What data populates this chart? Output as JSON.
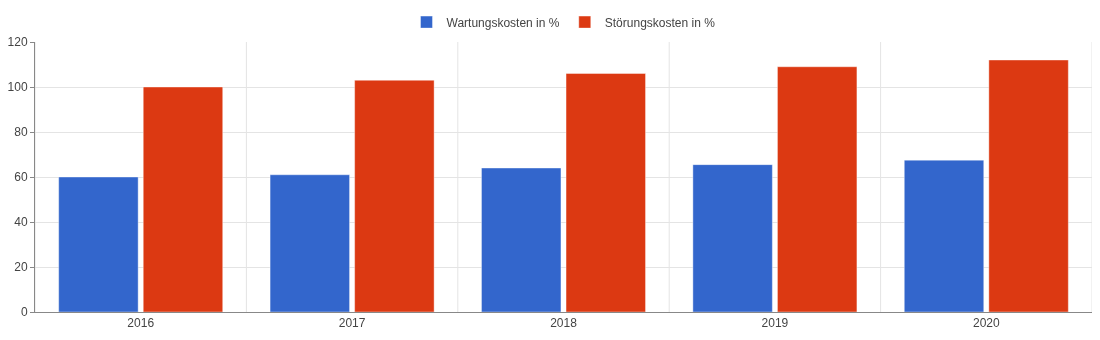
{
  "chart_data": {
    "type": "bar",
    "categories": [
      "2016",
      "2017",
      "2018",
      "2019",
      "2020"
    ],
    "series": [
      {
        "name": "Wartungskosten in %",
        "color": "#3366cc",
        "values": [
          60,
          61,
          64,
          65.5,
          67.5
        ]
      },
      {
        "name": "Störungskosten in %",
        "color": "#dc3912",
        "values": [
          100,
          103,
          106,
          109,
          112
        ]
      }
    ],
    "ylim": [
      0,
      120
    ],
    "yticks": [
      0,
      20,
      40,
      60,
      80,
      100,
      120
    ],
    "grid": true,
    "legend": "top"
  }
}
